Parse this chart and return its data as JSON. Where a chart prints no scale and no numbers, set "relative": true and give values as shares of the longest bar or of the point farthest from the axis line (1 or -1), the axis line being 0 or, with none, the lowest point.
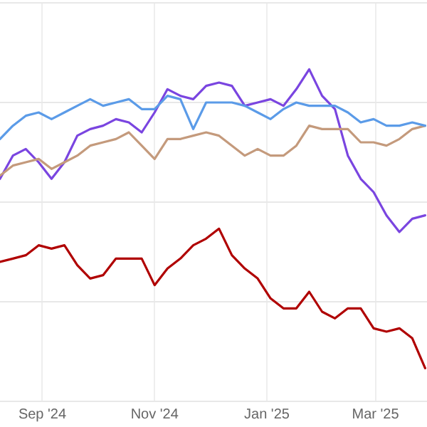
{
  "chart_data": {
    "type": "line",
    "relative": true,
    "grid": true,
    "marker": "none",
    "line_style": "solid",
    "x": [
      "2024-08-09",
      "2024-08-16",
      "2024-08-23",
      "2024-08-30",
      "2024-09-06",
      "2024-09-13",
      "2024-09-20",
      "2024-09-27",
      "2024-10-04",
      "2024-10-11",
      "2024-10-18",
      "2024-10-25",
      "2024-11-01",
      "2024-11-08",
      "2024-11-15",
      "2024-11-22",
      "2024-11-29",
      "2024-12-06",
      "2024-12-13",
      "2024-12-20",
      "2024-12-27",
      "2025-01-03",
      "2025-01-10",
      "2025-01-17",
      "2025-01-24",
      "2025-01-31",
      "2025-02-07",
      "2025-02-14",
      "2025-02-21",
      "2025-02-28",
      "2025-03-07",
      "2025-03-14",
      "2025-03-21",
      "2025-03-28"
    ],
    "xlim": [
      "2024-08-09",
      "2025-03-29"
    ],
    "xticks": [
      {
        "value": "2024-09-01",
        "label": "Sep '24"
      },
      {
        "value": "2024-11-01",
        "label": "Nov '24"
      },
      {
        "value": "2025-01-01",
        "label": "Jan '25"
      },
      {
        "value": "2025-03-01",
        "label": "Mar '25"
      }
    ],
    "series": [
      {
        "color": "#5b9be8",
        "values": [
          0.79,
          0.83,
          0.86,
          0.87,
          0.85,
          0.87,
          0.89,
          0.91,
          0.89,
          0.9,
          0.91,
          0.88,
          0.88,
          0.92,
          0.91,
          0.82,
          0.9,
          0.9,
          0.9,
          0.89,
          0.87,
          0.85,
          0.88,
          0.9,
          0.89,
          0.89,
          0.89,
          0.87,
          0.84,
          0.85,
          0.83,
          0.83,
          0.84,
          0.83
        ]
      },
      {
        "color": "#c49a7c",
        "values": [
          0.68,
          0.71,
          0.72,
          0.73,
          0.7,
          0.72,
          0.74,
          0.77,
          0.78,
          0.79,
          0.81,
          0.77,
          0.73,
          0.79,
          0.79,
          0.8,
          0.81,
          0.8,
          0.77,
          0.74,
          0.76,
          0.74,
          0.74,
          0.77,
          0.83,
          0.82,
          0.82,
          0.82,
          0.78,
          0.78,
          0.77,
          0.79,
          0.82,
          0.83
        ]
      },
      {
        "color": "#7a45e0",
        "values": [
          0.67,
          0.74,
          0.76,
          0.72,
          0.67,
          0.72,
          0.8,
          0.82,
          0.83,
          0.85,
          0.84,
          0.81,
          0.87,
          0.94,
          0.92,
          0.91,
          0.95,
          0.96,
          0.95,
          0.89,
          0.9,
          0.91,
          0.89,
          0.94,
          1,
          0.92,
          0.88,
          0.74,
          0.67,
          0.63,
          0.56,
          0.51,
          0.55,
          0.56
        ]
      },
      {
        "color": "#b00000",
        "values": [
          0.42,
          0.43,
          0.44,
          0.47,
          0.46,
          0.47,
          0.41,
          0.37,
          0.38,
          0.43,
          0.43,
          0.43,
          0.35,
          0.4,
          0.43,
          0.47,
          0.49,
          0.52,
          0.44,
          0.4,
          0.37,
          0.31,
          0.28,
          0.28,
          0.33,
          0.27,
          0.25,
          0.28,
          0.28,
          0.22,
          0.21,
          0.22,
          0.19,
          0.1
        ]
      }
    ]
  }
}
